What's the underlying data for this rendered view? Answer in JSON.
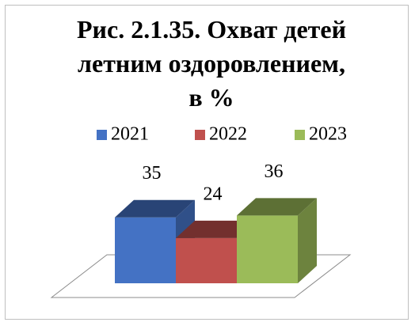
{
  "chart_data": {
    "type": "bar3d",
    "title": "Рис. 2.1.35. Охват детей летним оздоровлением,  в %",
    "series": [
      {
        "name": "2021",
        "color": "#4472c4",
        "values": [
          35
        ]
      },
      {
        "name": "2022",
        "color": "#c0504d",
        "values": [
          24
        ]
      },
      {
        "name": "2023",
        "color": "#9bbb59",
        "values": [
          36
        ]
      }
    ]
  }
}
